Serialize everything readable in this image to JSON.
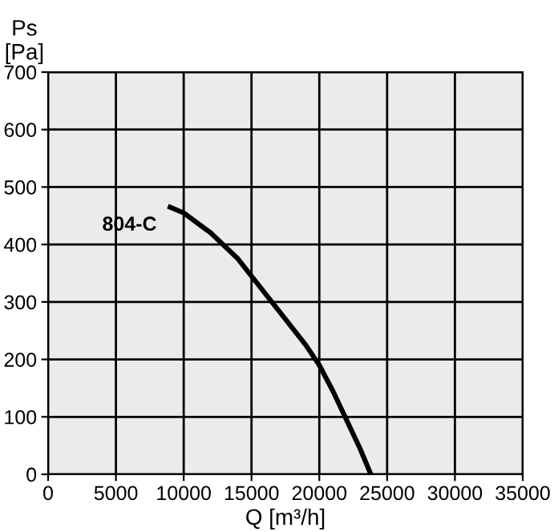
{
  "chart_data": {
    "type": "line",
    "xlabel": "Q [m³/h]",
    "ylabel": "Ps\n[Pa]",
    "xlim": [
      0,
      35000
    ],
    "ylim": [
      0,
      700
    ],
    "xticks": [
      0,
      5000,
      10000,
      15000,
      20000,
      25000,
      30000,
      35000
    ],
    "yticks": [
      0,
      100,
      200,
      300,
      400,
      500,
      600,
      700
    ],
    "grid": true,
    "marker": "none",
    "line_style": "solid",
    "series": [
      {
        "name": "804-C",
        "color": "#000000",
        "x": [
          9000,
          10000,
          12000,
          14000,
          15000,
          17000,
          19000,
          20000,
          21000,
          22000,
          23000,
          23800
        ],
        "values": [
          465,
          455,
          420,
          375,
          345,
          285,
          225,
          190,
          145,
          95,
          45,
          0
        ]
      }
    ]
  }
}
